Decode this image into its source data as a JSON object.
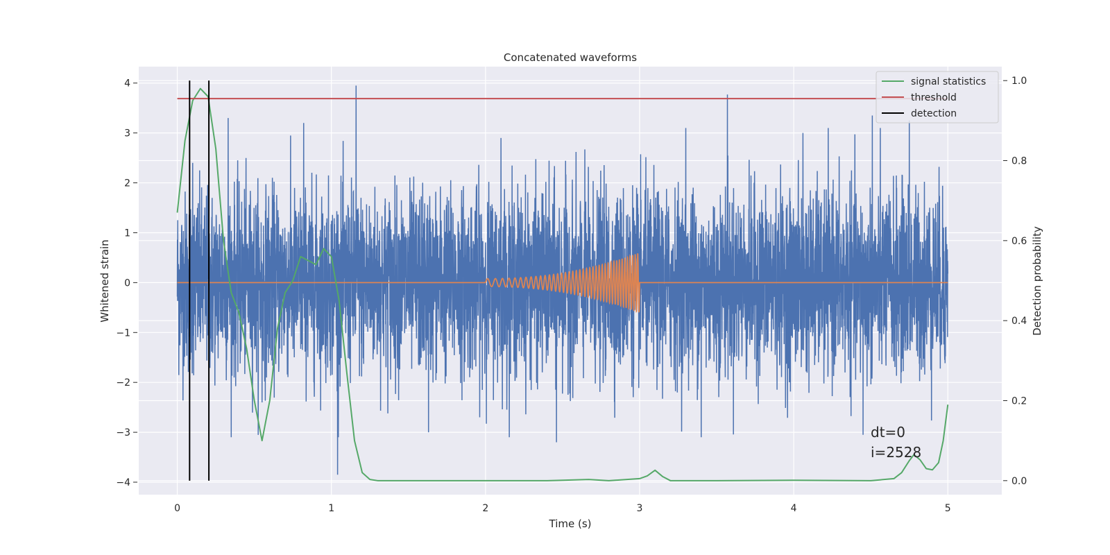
{
  "chart_data": {
    "type": "line",
    "title": "Concatenated waveforms",
    "xlabel": "Time (s)",
    "ylabel": "Whitened strain",
    "y2label": "Detection probability",
    "xlim": [
      -0.25,
      5.35
    ],
    "ylim": [
      -4.25,
      4.33
    ],
    "y2lim": [
      -0.035,
      1.035
    ],
    "x_ticks": [
      0,
      1,
      2,
      3,
      4,
      5
    ],
    "y_ticks": [
      -4,
      -3,
      -2,
      -1,
      0,
      1,
      2,
      3,
      4
    ],
    "y2_ticks": [
      0.0,
      0.2,
      0.4,
      0.6,
      0.8,
      1.0
    ],
    "grid": true,
    "legend_position": "top-right",
    "noise": {
      "x_range": [
        0,
        5
      ],
      "sigma": 0.9,
      "envelope_points": [
        {
          "x": 1.16,
          "y": 3.95
        },
        {
          "x": 3.57,
          "y": 3.77
        },
        {
          "x": 4.51,
          "y": 3.35
        },
        {
          "x": 0.33,
          "y": 3.3
        },
        {
          "x": 1.04,
          "y": -3.85
        },
        {
          "x": 2.46,
          "y": -3.2
        },
        {
          "x": 3.4,
          "y": -3.1
        },
        {
          "x": 1.63,
          "y": -3.0
        },
        {
          "x": 0.1,
          "y": 2.4
        },
        {
          "x": 0.82,
          "y": 3.2
        },
        {
          "x": 2.1,
          "y": 2.9
        },
        {
          "x": 3.3,
          "y": 3.1
        },
        {
          "x": 4.06,
          "y": 3.0
        },
        {
          "x": 4.75,
          "y": 3.25
        },
        {
          "x": 4.45,
          "y": -3.05
        },
        {
          "x": 0.55,
          "y": -2.4
        }
      ]
    },
    "chirp": {
      "x_range": [
        2.0,
        3.0
      ],
      "y_flat": 0,
      "amp_start": 0.08,
      "amp_end": 0.6,
      "cycles": 40
    },
    "series": [
      {
        "name": "signal statistics",
        "axis": "right",
        "x": [
          0.0,
          0.05,
          0.1,
          0.15,
          0.2,
          0.25,
          0.3,
          0.35,
          0.4,
          0.45,
          0.5,
          0.55,
          0.6,
          0.65,
          0.7,
          0.75,
          0.8,
          0.85,
          0.9,
          0.95,
          1.0,
          1.05,
          1.1,
          1.15,
          1.2,
          1.25,
          1.3,
          1.5,
          2.0,
          2.4,
          2.5,
          2.67,
          2.8,
          3.0,
          3.05,
          3.1,
          3.15,
          3.2,
          3.5,
          4.0,
          4.5,
          4.65,
          4.7,
          4.75,
          4.78,
          4.82,
          4.86,
          4.9,
          4.94,
          4.97,
          5.0
        ],
        "values": [
          0.67,
          0.85,
          0.95,
          0.98,
          0.96,
          0.83,
          0.6,
          0.47,
          0.42,
          0.33,
          0.2,
          0.1,
          0.2,
          0.38,
          0.47,
          0.5,
          0.56,
          0.55,
          0.54,
          0.58,
          0.56,
          0.45,
          0.27,
          0.1,
          0.02,
          0.003,
          0.0,
          0.0,
          0.0,
          0.0,
          0.001,
          0.003,
          0.0,
          0.005,
          0.012,
          0.026,
          0.01,
          0.0,
          0.0,
          0.001,
          0.0,
          0.005,
          0.02,
          0.05,
          0.065,
          0.052,
          0.03,
          0.027,
          0.045,
          0.1,
          0.19
        ]
      },
      {
        "name": "threshold",
        "axis": "right",
        "x": [
          0,
          5
        ],
        "values": [
          0.955,
          0.955
        ]
      },
      {
        "name": "detection",
        "axis": "right",
        "type": "vlines",
        "x": [
          0.08,
          0.205
        ],
        "range": [
          0,
          1.0
        ]
      }
    ],
    "colors": {
      "noise": "#4c72b0",
      "chirp": "#dd8452",
      "signal statistics": "#55a868",
      "threshold": "#c44e52",
      "detection": "#000000",
      "plot_bg": "#eaeaf2",
      "grid": "#ffffff"
    },
    "annotations": [
      "dt=0",
      "i=2528"
    ]
  }
}
